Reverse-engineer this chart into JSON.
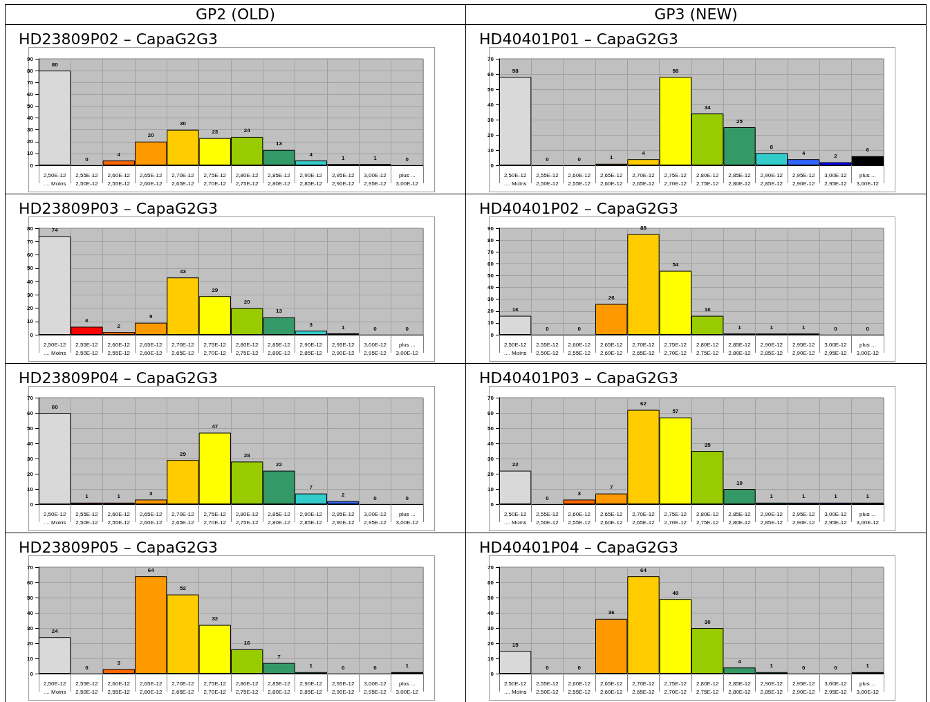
{
  "chart_data": [
    {
      "type": "other",
      "title": "GP2 (OLD)"
    },
    {
      "type": "other",
      "title": "GP3 (NEW)"
    },
    {
      "type": "bar",
      "title": "HD23809P02 – CapaG2G3",
      "categories": [
        "2,50E-12\n.... Moins",
        "2,55E-12\n2,50E-12",
        "2,60E-12\n2,55E-12",
        "2,65E-12\n2,60E-12",
        "2,70E-12\n2,65E-12",
        "2,75E-12\n2,70E-12",
        "2,80E-12\n2,75E-12",
        "2,85E-12\n2,80E-12",
        "2,90E-12\n2,85E-12",
        "2,95E-12\n2,90E-12",
        "3,00E-12\n2,95E-12",
        "plus ...\n3,00E-12"
      ],
      "values": [
        80,
        0,
        4,
        20,
        30,
        23,
        24,
        13,
        4,
        1,
        1,
        0
      ],
      "colors": [
        "#d9d9d9",
        "#ff0000",
        "#ff6600",
        "#ff9900",
        "#ffcc00",
        "#ffff00",
        "#99cc00",
        "#339966",
        "#33cccc",
        "#3366ff",
        "#0000ff",
        "#000000"
      ],
      "ylim": [
        0,
        90
      ],
      "yticks": [
        0,
        10,
        20,
        30,
        40,
        50,
        60,
        70,
        80,
        90
      ],
      "grid": true,
      "data_labels": true
    },
    {
      "type": "bar",
      "title": "HD40401P01 – CapaG2G3",
      "categories": [
        "2,50E-12\n.... Moins",
        "2,55E-12\n2,50E-12",
        "2,60E-12\n2,55E-12",
        "2,65E-12\n2,60E-12",
        "2,70E-12\n2,65E-12",
        "2,75E-12\n2,70E-12",
        "2,80E-12\n2,75E-12",
        "2,85E-12\n2,80E-12",
        "2,90E-12\n2,85E-12",
        "2,95E-12\n2,90E-12",
        "3,00E-12\n2,95E-12",
        "plus ...\n3,00E-12"
      ],
      "values": [
        58,
        0,
        0,
        1,
        4,
        58,
        34,
        25,
        8,
        4,
        2,
        6
      ],
      "colors": [
        "#d9d9d9",
        "#ff0000",
        "#ff6600",
        "#ff9900",
        "#ffcc00",
        "#ffff00",
        "#99cc00",
        "#339966",
        "#33cccc",
        "#3366ff",
        "#0000ff",
        "#000000"
      ],
      "ylim": [
        0,
        70
      ],
      "yticks": [
        0,
        10,
        20,
        30,
        40,
        50,
        60,
        70
      ],
      "grid": true,
      "data_labels": true
    },
    {
      "type": "bar",
      "title": "HD23809P03 – CapaG2G3",
      "categories": [
        "2,50E-12\n.... Moins",
        "2,55E-12\n2,50E-12",
        "2,60E-12\n2,55E-12",
        "2,65E-12\n2,60E-12",
        "2,70E-12\n2,65E-12",
        "2,75E-12\n2,70E-12",
        "2,80E-12\n2,75E-12",
        "2,85E-12\n2,80E-12",
        "2,90E-12\n2,85E-12",
        "2,95E-12\n2,90E-12",
        "3,00E-12\n2,95E-12",
        "plus ...\n3,00E-12"
      ],
      "values": [
        74,
        6,
        2,
        9,
        43,
        29,
        20,
        13,
        3,
        1,
        0,
        0
      ],
      "colors": [
        "#d9d9d9",
        "#ff0000",
        "#ff6600",
        "#ff9900",
        "#ffcc00",
        "#ffff00",
        "#99cc00",
        "#339966",
        "#33cccc",
        "#3366ff",
        "#0000ff",
        "#000000"
      ],
      "ylim": [
        0,
        80
      ],
      "yticks": [
        0,
        10,
        20,
        30,
        40,
        50,
        60,
        70,
        80
      ],
      "grid": true,
      "data_labels": true
    },
    {
      "type": "bar",
      "title": "HD40401P02 – CapaG2G3",
      "categories": [
        "2,50E-12\n.... Moins",
        "2,55E-12\n2,50E-12",
        "2,60E-12\n2,55E-12",
        "2,65E-12\n2,60E-12",
        "2,70E-12\n2,65E-12",
        "2,75E-12\n2,70E-12",
        "2,80E-12\n2,75E-12",
        "2,85E-12\n2,80E-12",
        "2,90E-12\n2,85E-12",
        "2,95E-12\n2,90E-12",
        "3,00E-12\n2,95E-12",
        "plus ...\n3,00E-12"
      ],
      "values": [
        16,
        0,
        0,
        26,
        85,
        54,
        16,
        1,
        1,
        1,
        0,
        0
      ],
      "colors": [
        "#d9d9d9",
        "#ff0000",
        "#ff6600",
        "#ff9900",
        "#ffcc00",
        "#ffff00",
        "#99cc00",
        "#339966",
        "#33cccc",
        "#3366ff",
        "#0000ff",
        "#000000"
      ],
      "ylim": [
        0,
        90
      ],
      "yticks": [
        0,
        10,
        20,
        30,
        40,
        50,
        60,
        70,
        80,
        90
      ],
      "grid": true,
      "data_labels": true
    },
    {
      "type": "bar",
      "title": "HD23809P04 – CapaG2G3",
      "categories": [
        "2,50E-12\n.... Moins",
        "2,55E-12\n2,50E-12",
        "2,60E-12\n2,55E-12",
        "2,65E-12\n2,60E-12",
        "2,70E-12\n2,65E-12",
        "2,75E-12\n2,70E-12",
        "2,80E-12\n2,75E-12",
        "2,85E-12\n2,80E-12",
        "2,90E-12\n2,85E-12",
        "2,95E-12\n2,90E-12",
        "3,00E-12\n2,95E-12",
        "plus ...\n3,00E-12"
      ],
      "values": [
        60,
        1,
        1,
        3,
        29,
        47,
        28,
        22,
        7,
        2,
        0,
        0
      ],
      "colors": [
        "#d9d9d9",
        "#ff0000",
        "#ff6600",
        "#ff9900",
        "#ffcc00",
        "#ffff00",
        "#99cc00",
        "#339966",
        "#33cccc",
        "#3366ff",
        "#0000ff",
        "#000000"
      ],
      "ylim": [
        0,
        70
      ],
      "yticks": [
        0,
        10,
        20,
        30,
        40,
        50,
        60,
        70
      ],
      "grid": true,
      "data_labels": true
    },
    {
      "type": "bar",
      "title": "HD40401P03 – CapaG2G3",
      "categories": [
        "2,50E-12\n.... Moins",
        "2,55E-12\n2,50E-12",
        "2,60E-12\n2,55E-12",
        "2,65E-12\n2,60E-12",
        "2,70E-12\n2,65E-12",
        "2,75E-12\n2,70E-12",
        "2,80E-12\n2,75E-12",
        "2,85E-12\n2,80E-12",
        "2,90E-12\n2,85E-12",
        "2,95E-12\n2,90E-12",
        "3,00E-12\n2,95E-12",
        "plus ...\n3,00E-12"
      ],
      "values": [
        22,
        0,
        3,
        7,
        62,
        57,
        35,
        10,
        1,
        1,
        1,
        1
      ],
      "colors": [
        "#d9d9d9",
        "#ff0000",
        "#ff6600",
        "#ff9900",
        "#ffcc00",
        "#ffff00",
        "#99cc00",
        "#339966",
        "#33cccc",
        "#3366ff",
        "#0000ff",
        "#000000"
      ],
      "ylim": [
        0,
        70
      ],
      "yticks": [
        0,
        10,
        20,
        30,
        40,
        50,
        60,
        70
      ],
      "grid": true,
      "data_labels": true
    },
    {
      "type": "bar",
      "title": "HD23809P05 – CapaG2G3",
      "categories": [
        "2,50E-12\n.... Moins",
        "2,55E-12\n2,50E-12",
        "2,60E-12\n2,55E-12",
        "2,65E-12\n2,60E-12",
        "2,70E-12\n2,65E-12",
        "2,75E-12\n2,70E-12",
        "2,80E-12\n2,75E-12",
        "2,85E-12\n2,80E-12",
        "2,90E-12\n2,85E-12",
        "2,95E-12\n2,90E-12",
        "3,00E-12\n2,95E-12",
        "plus ...\n3,00E-12"
      ],
      "values": [
        24,
        0,
        3,
        64,
        52,
        32,
        16,
        7,
        1,
        0,
        0,
        1
      ],
      "colors": [
        "#d9d9d9",
        "#ff0000",
        "#ff6600",
        "#ff9900",
        "#ffcc00",
        "#ffff00",
        "#99cc00",
        "#339966",
        "#33cccc",
        "#3366ff",
        "#0000ff",
        "#000000"
      ],
      "ylim": [
        0,
        70
      ],
      "yticks": [
        0,
        10,
        20,
        30,
        40,
        50,
        60,
        70
      ],
      "grid": true,
      "data_labels": true
    },
    {
      "type": "bar",
      "title": "HD40401P04 – CapaG2G3",
      "categories": [
        "2,50E-12\n.... Moins",
        "2,55E-12\n2,50E-12",
        "2,60E-12\n2,55E-12",
        "2,65E-12\n2,60E-12",
        "2,70E-12\n2,65E-12",
        "2,75E-12\n2,70E-12",
        "2,80E-12\n2,75E-12",
        "2,85E-12\n2,80E-12",
        "2,90E-12\n2,85E-12",
        "2,95E-12\n2,90E-12",
        "3,00E-12\n2,95E-12",
        "plus ...\n3,00E-12"
      ],
      "values": [
        15,
        0,
        0,
        36,
        64,
        49,
        30,
        4,
        1,
        0,
        0,
        1
      ],
      "colors": [
        "#d9d9d9",
        "#ff0000",
        "#ff6600",
        "#ff9900",
        "#ffcc00",
        "#ffff00",
        "#99cc00",
        "#339966",
        "#33cccc",
        "#3366ff",
        "#0000ff",
        "#000000"
      ],
      "ylim": [
        0,
        70
      ],
      "yticks": [
        0,
        10,
        20,
        30,
        40,
        50,
        60,
        70
      ],
      "grid": true,
      "data_labels": true
    }
  ]
}
